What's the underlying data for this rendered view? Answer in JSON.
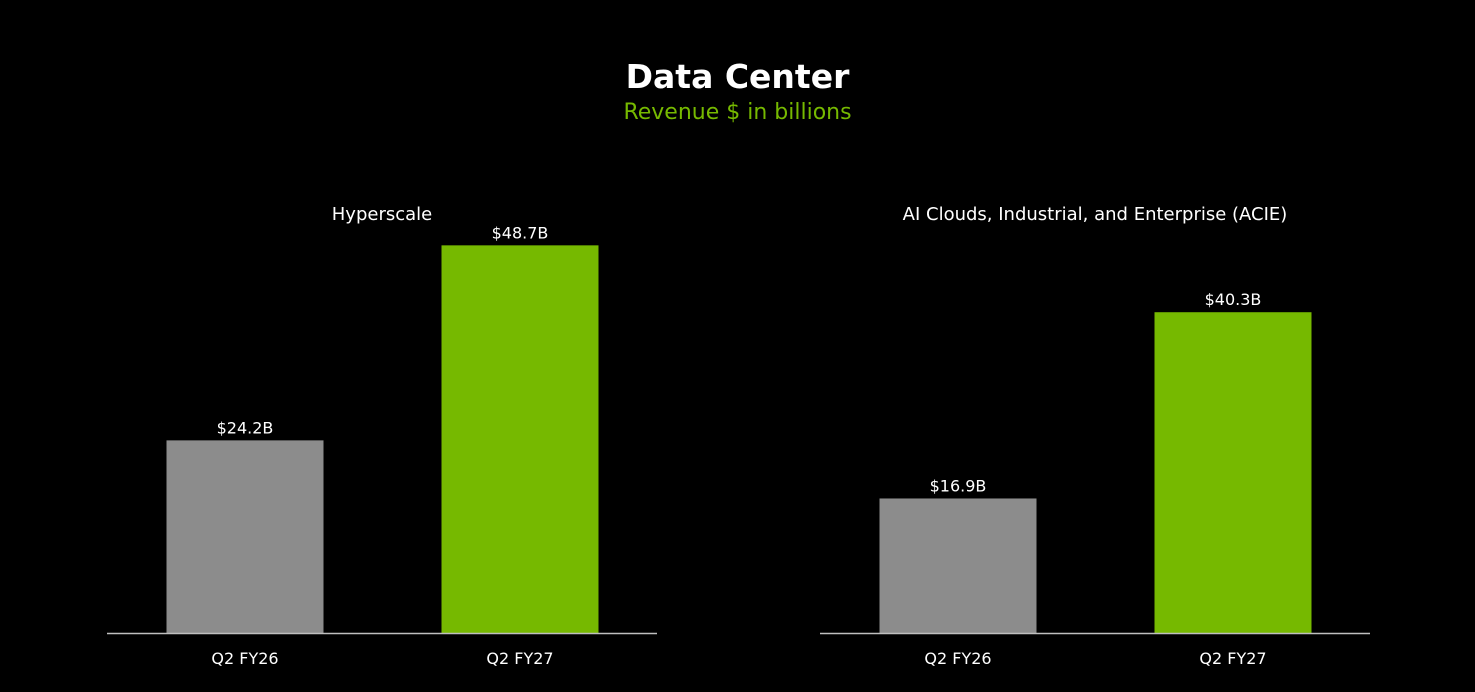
{
  "page": {
    "title": "Data Center",
    "subtitle": "Revenue $ in billions"
  },
  "colors": {
    "background": "#000000",
    "subtitle": "#76b900",
    "prior_bar": "#8c8c8c",
    "current_bar": "#76b900",
    "axis": "#bfbfbf",
    "text": "#ffffff"
  },
  "chart_data": [
    {
      "type": "bar",
      "title": "Hyperscale",
      "categories": [
        "Q2 FY26",
        "Q2 FY27"
      ],
      "values": [
        24.2,
        48.7
      ],
      "data_labels": [
        "$24.2B",
        "$48.7B"
      ],
      "ylim": [
        0,
        50
      ],
      "grid": false,
      "legend": "none"
    },
    {
      "type": "bar",
      "title": "AI Clouds, Industrial, and Enterprise (ACIE)",
      "categories": [
        "Q2 FY26",
        "Q2 FY27"
      ],
      "values": [
        16.9,
        40.3
      ],
      "data_labels": [
        "$16.9B",
        "$40.3B"
      ],
      "ylim": [
        0,
        50
      ],
      "grid": false,
      "legend": "none"
    }
  ]
}
